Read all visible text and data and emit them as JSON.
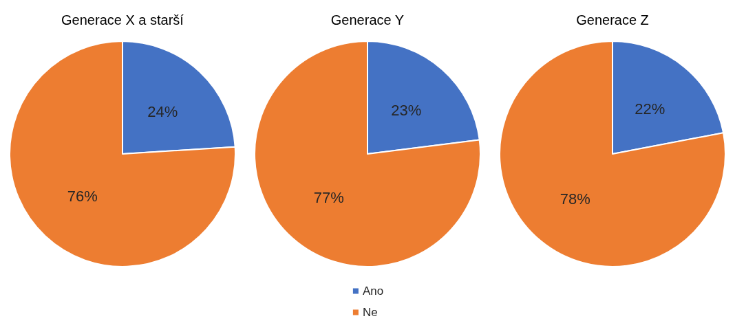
{
  "chart_data": [
    {
      "type": "pie",
      "title": "Generace X a starší",
      "values": [
        24,
        76
      ],
      "colors": [
        "#4472c4",
        "#ed7d31"
      ],
      "value_labels": [
        "24%",
        "76%"
      ]
    },
    {
      "type": "pie",
      "title": "Generace Y",
      "categories": [
        "Ano",
        "Ne"
      ],
      "values": [
        23,
        77
      ],
      "colors": [
        "#4472c4",
        "#ed7d31"
      ],
      "value_labels": [
        "23%",
        "77%"
      ],
      "legend": "bottom"
    },
    {
      "type": "pie",
      "title": "Generace Z",
      "values": [
        22,
        78
      ],
      "colors": [
        "#4472c4",
        "#ed7d31"
      ],
      "value_labels": [
        "22%",
        "78%"
      ]
    }
  ]
}
